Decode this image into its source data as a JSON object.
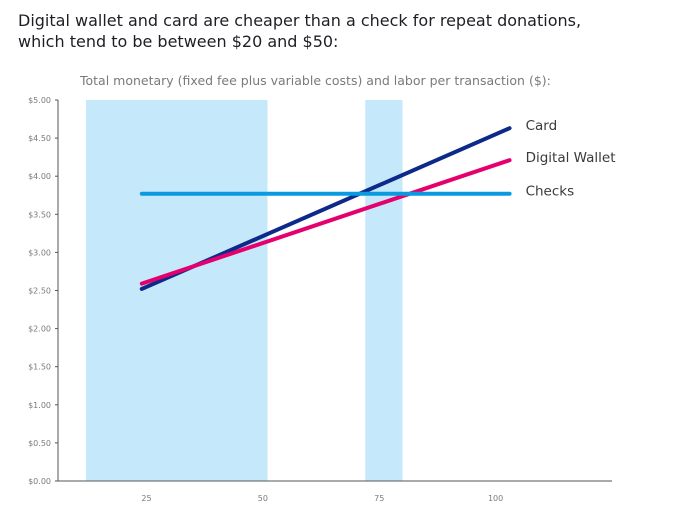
{
  "header": {
    "title_line1": "Digital wallet and card are cheaper than a check for repeat donations,",
    "title_line2": "which tend to be between $20 and $50:"
  },
  "chart_data": {
    "type": "line",
    "title": "Digital wallet and card are cheaper than a check for repeat donations, which tend to be between $20 and $50:",
    "subtitle": "Total monetary (fixed fee plus variable costs) and labor per transaction ($):",
    "xlabel": "",
    "ylabel": "",
    "xlim": [
      6,
      125
    ],
    "ylim": [
      0,
      5
    ],
    "xticks": [
      25,
      50,
      75,
      100
    ],
    "xtick_labels": [
      "25",
      "50",
      "75",
      "100"
    ],
    "yticks": [
      0,
      0.5,
      1,
      1.5,
      2,
      2.5,
      3,
      3.5,
      4,
      4.5,
      5
    ],
    "ytick_labels": [
      "$0.00",
      "$0.50",
      "$1.00",
      "$1.50",
      "$2.00",
      "$2.50",
      "$3.00",
      "$3.50",
      "$4.00",
      "$4.50",
      "$5.00"
    ],
    "grid": false,
    "highlight_bands": [
      {
        "x_start": 12,
        "x_end": 51
      },
      {
        "x_start": 72,
        "x_end": 80
      }
    ],
    "series": [
      {
        "name": "Card",
        "color": "#0d2a8a",
        "x": [
          24,
          103
        ],
        "values": [
          2.52,
          4.63
        ]
      },
      {
        "name": "Digital Wallet",
        "color": "#e5006e",
        "x": [
          24,
          103
        ],
        "values": [
          2.59,
          4.21
        ]
      },
      {
        "name": "Checks",
        "color": "#0b9ae0",
        "x": [
          24,
          103
        ],
        "values": [
          3.77,
          3.77
        ]
      }
    ],
    "band_color": "#c5e9fa",
    "axis_color": "#555555"
  }
}
